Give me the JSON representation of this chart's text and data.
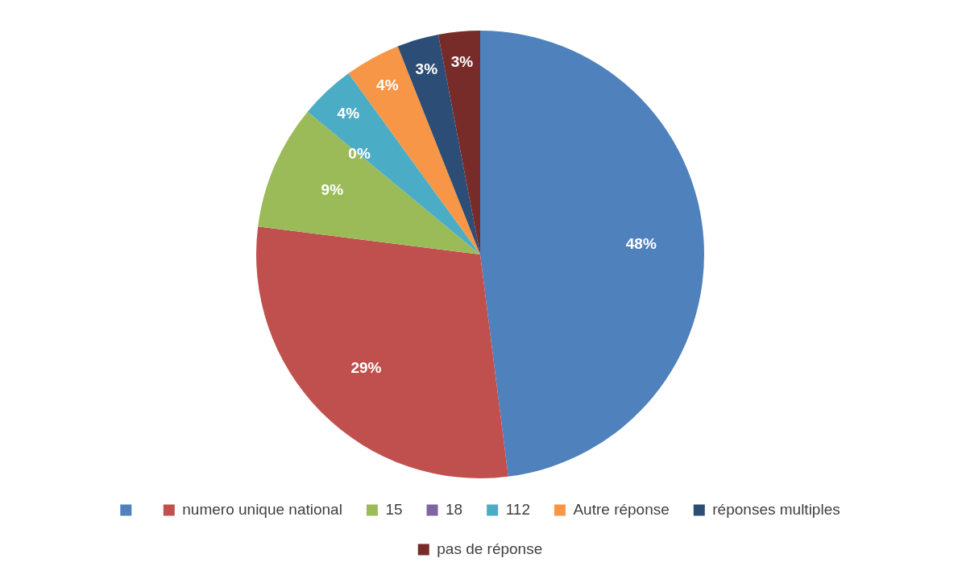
{
  "chart_data": {
    "type": "pie",
    "categories": [
      null,
      "numero unique national",
      "15",
      "18",
      "112",
      "Autre réponse",
      "réponses multiples",
      "pas de réponse"
    ],
    "values": [
      48,
      29,
      9,
      0,
      4,
      4,
      3,
      3
    ],
    "colors": [
      "#4f81bd",
      "#c0504d",
      "#9bbb59",
      "#8064a2",
      "#4bacc6",
      "#f79646",
      "#2c4d75",
      "#772c2a"
    ],
    "value_labels": [
      "48%",
      "29%",
      "9%",
      "0%",
      "4%",
      "4%",
      "3%",
      "3%"
    ],
    "legend": "bottom"
  }
}
